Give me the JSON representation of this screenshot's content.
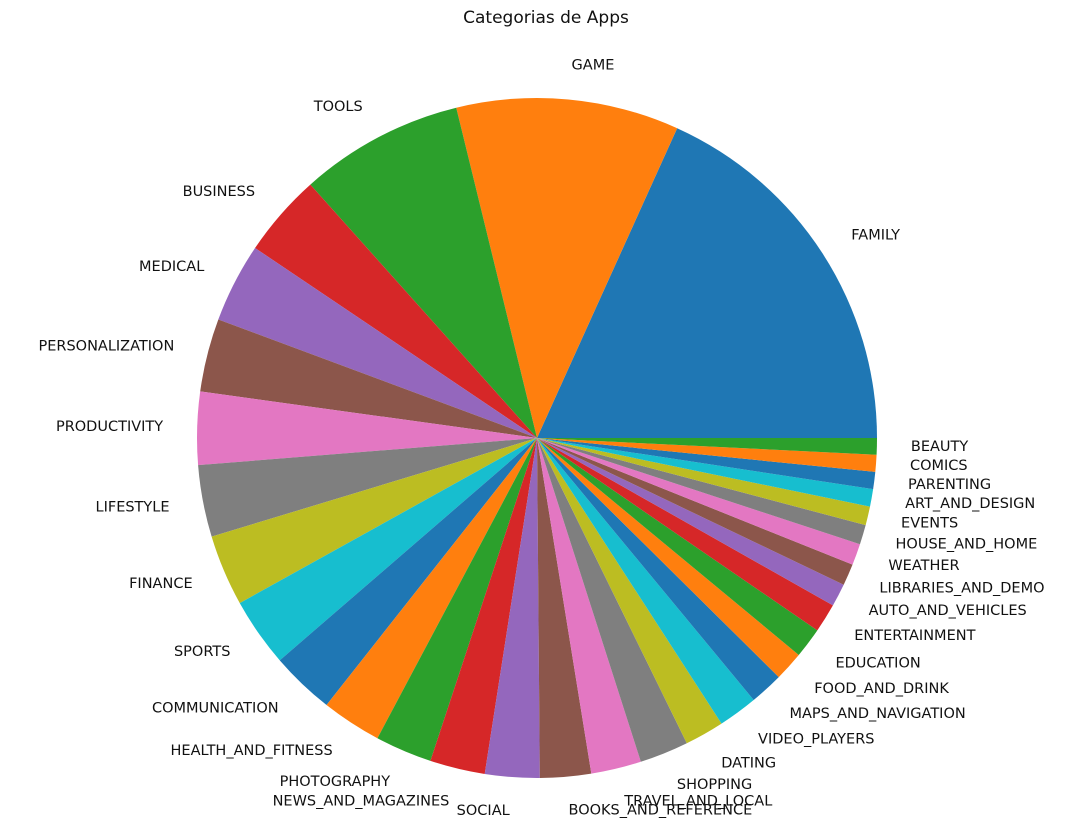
{
  "chart_data": {
    "type": "pie",
    "title": "Categorias de Apps",
    "start_angle_deg": 0,
    "direction": "counterclockwise",
    "slices": [
      {
        "label": "FAMILY",
        "value": 1972,
        "color": "#1f77b4"
      },
      {
        "label": "GAME",
        "value": 1144,
        "color": "#ff7f0e"
      },
      {
        "label": "TOOLS",
        "value": 843,
        "color": "#2ca02c"
      },
      {
        "label": "BUSINESS",
        "value": 427,
        "color": "#d62728"
      },
      {
        "label": "MEDICAL",
        "value": 408,
        "color": "#9467bd"
      },
      {
        "label": "PERSONALIZATION",
        "value": 376,
        "color": "#8c564b"
      },
      {
        "label": "PRODUCTIVITY",
        "value": 374,
        "color": "#e377c2"
      },
      {
        "label": "LIFESTYLE",
        "value": 369,
        "color": "#7f7f7f"
      },
      {
        "label": "FINANCE",
        "value": 366,
        "color": "#bcbd22"
      },
      {
        "label": "SPORTS",
        "value": 354,
        "color": "#17becf"
      },
      {
        "label": "COMMUNICATION",
        "value": 328,
        "color": "#1f77b4"
      },
      {
        "label": "HEALTH_AND_FITNESS",
        "value": 308,
        "color": "#ff7f0e"
      },
      {
        "label": "PHOTOGRAPHY",
        "value": 292,
        "color": "#2ca02c"
      },
      {
        "label": "NEWS_AND_MAGAZINES",
        "value": 283,
        "color": "#d62728"
      },
      {
        "label": "SOCIAL",
        "value": 280,
        "color": "#9467bd"
      },
      {
        "label": "BOOKS_AND_REFERENCE",
        "value": 262,
        "color": "#8c564b"
      },
      {
        "label": "TRAVEL_AND_LOCAL",
        "value": 258,
        "color": "#e377c2"
      },
      {
        "label": "SHOPPING",
        "value": 251,
        "color": "#7f7f7f"
      },
      {
        "label": "DATING",
        "value": 202,
        "color": "#bcbd22"
      },
      {
        "label": "VIDEO_PLAYERS",
        "value": 202,
        "color": "#17becf"
      },
      {
        "label": "MAPS_AND_NAVIGATION",
        "value": 172,
        "color": "#1f77b4"
      },
      {
        "label": "FOOD_AND_DRINK",
        "value": 151,
        "color": "#ff7f0e"
      },
      {
        "label": "EDUCATION",
        "value": 156,
        "color": "#2ca02c"
      },
      {
        "label": "ENTERTAINMENT",
        "value": 149,
        "color": "#d62728"
      },
      {
        "label": "AUTO_AND_VEHICLES",
        "value": 118,
        "color": "#9467bd"
      },
      {
        "label": "LIBRARIES_AND_DEMO",
        "value": 111,
        "color": "#8c564b"
      },
      {
        "label": "WEATHER",
        "value": 110,
        "color": "#e377c2"
      },
      {
        "label": "HOUSE_AND_HOME",
        "value": 101,
        "color": "#7f7f7f"
      },
      {
        "label": "EVENTS",
        "value": 96,
        "color": "#bcbd22"
      },
      {
        "label": "ART_AND_DESIGN",
        "value": 90,
        "color": "#17becf"
      },
      {
        "label": "PARENTING",
        "value": 88,
        "color": "#1f77b4"
      },
      {
        "label": "COMICS",
        "value": 87,
        "color": "#ff7f0e"
      },
      {
        "label": "BEAUTY",
        "value": 85,
        "color": "#2ca02c"
      }
    ]
  }
}
